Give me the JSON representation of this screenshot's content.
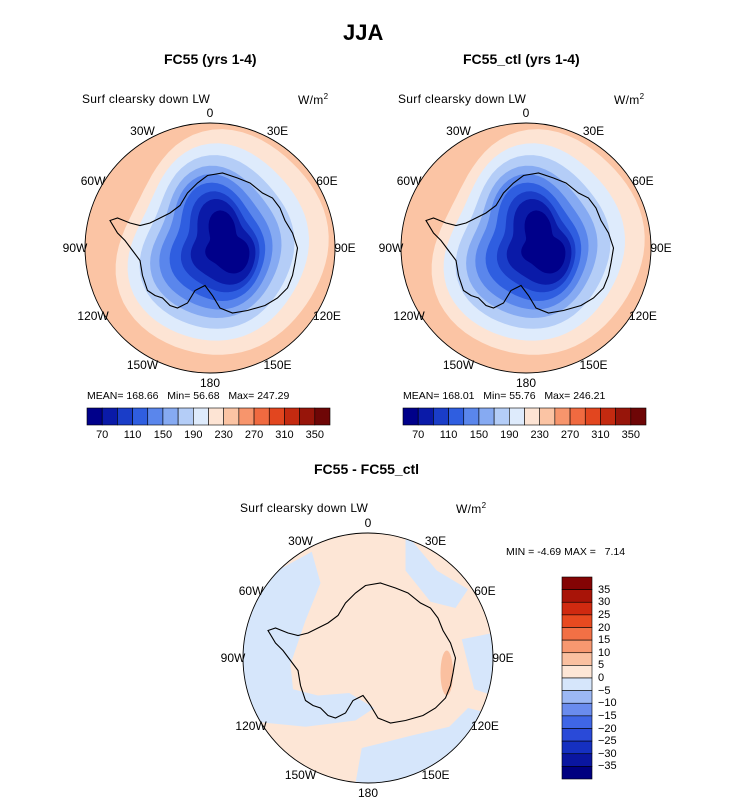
{
  "title": "JJA",
  "panels": [
    {
      "id": "fc55",
      "title": "FC55 (yrs 1-4)",
      "variable": "Surf clearsky down LW",
      "units_base": "W/m",
      "units_exp": "2",
      "lon_labels": [
        "0",
        "30E",
        "60E",
        "90E",
        "120E",
        "150E",
        "180",
        "150W",
        "120W",
        "90W",
        "60W",
        "30W"
      ],
      "stats": {
        "mean_label": "MEAN=",
        "mean": "168.66",
        "min_label": "Min=",
        "min": "56.68",
        "max_label": "Max=",
        "max": "247.29"
      },
      "colorbar_ticks": [
        "70",
        "110",
        "150",
        "190",
        "230",
        "270",
        "310",
        "350"
      ]
    },
    {
      "id": "fc55_ctl",
      "title": "FC55_ctl (yrs 1-4)",
      "variable": "Surf clearsky down LW",
      "units_base": "W/m",
      "units_exp": "2",
      "lon_labels": [
        "0",
        "30E",
        "60E",
        "90E",
        "120E",
        "150E",
        "180",
        "150W",
        "120W",
        "90W",
        "60W",
        "30W"
      ],
      "stats": {
        "mean_label": "MEAN=",
        "mean": "168.01",
        "min_label": "Min=",
        "min": "55.76",
        "max_label": "Max=",
        "max": "246.21"
      },
      "colorbar_ticks": [
        "70",
        "110",
        "150",
        "190",
        "230",
        "270",
        "310",
        "350"
      ]
    },
    {
      "id": "diff",
      "title": "FC55 - FC55_ctl",
      "variable": "Surf clearsky down LW",
      "units_base": "W/m",
      "units_exp": "2",
      "lon_labels": [
        "0",
        "30E",
        "60E",
        "90E",
        "120E",
        "150E",
        "180",
        "150W",
        "120W",
        "90W",
        "60W",
        "30W"
      ],
      "stats": {
        "min_label": "MIN =",
        "min": "-4.69",
        "max_label": "MAX =",
        "max": "7.14"
      },
      "colorbar_ticks": [
        "35",
        "30",
        "25",
        "20",
        "15",
        "10",
        "5",
        "0",
        "−5",
        "−10",
        "−15",
        "−20",
        "−25",
        "−30",
        "−35"
      ]
    }
  ],
  "colors": {
    "abs_scale": [
      "#00008a",
      "#0a1aa8",
      "#1a3dc8",
      "#2f5ee0",
      "#5a86ec",
      "#86aaf2",
      "#b4cdf7",
      "#deebfc",
      "#fde4d4",
      "#fbc4a4",
      "#f7956c",
      "#f06a40",
      "#e2461f",
      "#c42a10",
      "#97150a",
      "#6e0606"
    ],
    "diff_scale": [
      "#000080",
      "#0a16a0",
      "#1530c0",
      "#2a4ad8",
      "#3f66e6",
      "#6a8cee",
      "#9cb8f4",
      "#d6e6fb",
      "#fde6d6",
      "#fac0a0",
      "#f79870",
      "#f27045",
      "#e84a20",
      "#d02a10",
      "#a81408",
      "#840404"
    ]
  }
}
